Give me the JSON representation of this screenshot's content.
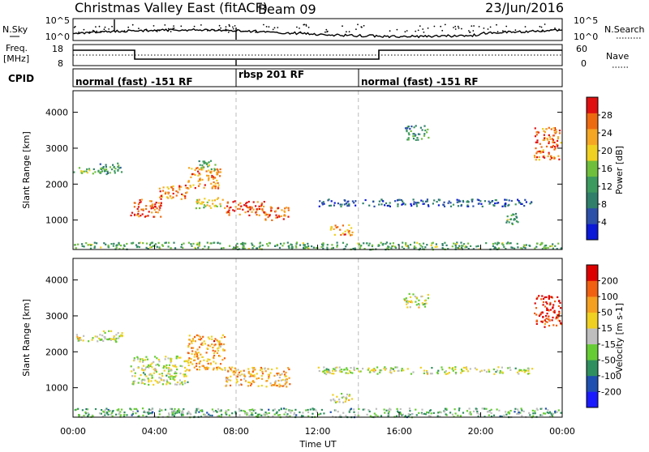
{
  "header": {
    "title": "Christmas Valley East (fitACF)",
    "beam": "Beam 09",
    "date": "23/Jun/2016"
  },
  "sidebar_labels": {
    "nsky": "N.Sky",
    "freq_line1": "Freq.",
    "freq_line2": "[MHz]",
    "cpid": "CPID",
    "nsearch": "N.Search",
    "nave": "Nave"
  },
  "nsky_panel": {
    "left_ticks": [
      "10^5",
      "10^0"
    ],
    "right_ticks": [
      "10^5",
      "10^0"
    ]
  },
  "freq_panel": {
    "left_ticks": [
      "18",
      "8"
    ],
    "right_ticks": [
      "60",
      "0"
    ]
  },
  "cpid_panel": {
    "segments": [
      {
        "label": "normal (fast) -151 RF",
        "start_h": 0,
        "end_h": 8
      },
      {
        "label": "rbsp 201 RF",
        "start_h": 8,
        "end_h": 14
      },
      {
        "label": "normal (fast) -151 RF",
        "start_h": 14,
        "end_h": 24
      }
    ]
  },
  "colors": {
    "power_scale": [
      "#0a18d8",
      "#2c4fa8",
      "#2f7f6a",
      "#3d9a5e",
      "#6fbf3c",
      "#f0d020",
      "#f5a623",
      "#ee6a10",
      "#e01010"
    ],
    "velocity_scale": [
      "#1a1aff",
      "#1f4fb0",
      "#2f8f5f",
      "#66cc33",
      "#bebebe",
      "#f0d020",
      "#f5a020",
      "#f06010",
      "#dd0000"
    ],
    "ground": "#bebebe"
  },
  "chart_data": [
    {
      "type": "heatmap",
      "name": "power",
      "ylabel": "Slant Range [km]",
      "colorbar_label": "Power [dB]",
      "colorbar_ticks": [
        "4",
        "8",
        "12",
        "16",
        "20",
        "24",
        "28"
      ],
      "y_ticks": [
        "1000",
        "2000",
        "3000",
        "4000"
      ],
      "ylim": [
        180,
        4600
      ],
      "xlim": [
        0,
        24
      ],
      "regions": [
        {
          "t0": 0.0,
          "t1": 1.6,
          "r0": 2300,
          "r1": 2500,
          "level": 0.45
        },
        {
          "t0": 1.2,
          "t1": 2.4,
          "r0": 2300,
          "r1": 2600,
          "level": 0.35
        },
        {
          "t0": 2.8,
          "t1": 4.3,
          "r0": 1100,
          "r1": 1600,
          "level": 0.85
        },
        {
          "t0": 4.2,
          "t1": 5.6,
          "r0": 1600,
          "r1": 2000,
          "level": 0.8
        },
        {
          "t0": 5.6,
          "t1": 7.2,
          "r0": 1900,
          "r1": 2500,
          "level": 0.75
        },
        {
          "t0": 6.1,
          "t1": 7.0,
          "r0": 2400,
          "r1": 2700,
          "level": 0.5
        },
        {
          "t0": 6.0,
          "t1": 7.4,
          "r0": 1350,
          "r1": 1650,
          "level": 0.6
        },
        {
          "t0": 7.4,
          "t1": 9.4,
          "r0": 1150,
          "r1": 1550,
          "level": 0.88
        },
        {
          "t0": 9.3,
          "t1": 10.6,
          "r0": 1000,
          "r1": 1400,
          "level": 0.85
        },
        {
          "t0": 12.6,
          "t1": 13.7,
          "r0": 600,
          "r1": 900,
          "level": 0.75
        },
        {
          "t0": 16.2,
          "t1": 17.4,
          "r0": 3250,
          "r1": 3650,
          "level": 0.35
        },
        {
          "t0": 12.0,
          "t1": 22.5,
          "r0": 1400,
          "r1": 1600,
          "level": 0.2
        },
        {
          "t0": 21.2,
          "t1": 21.8,
          "r0": 900,
          "r1": 1200,
          "level": 0.4
        },
        {
          "t0": 22.6,
          "t1": 23.9,
          "r0": 2700,
          "r1": 3600,
          "level": 0.8
        },
        {
          "t0": 0.0,
          "t1": 24.0,
          "r0": 200,
          "r1": 400,
          "level": 0.4
        }
      ]
    },
    {
      "type": "heatmap",
      "name": "velocity",
      "ylabel": "Slant Range [km]",
      "colorbar_label": "Velocity [m s-1]",
      "colorbar_ticks": [
        "-200",
        "-100",
        "-50",
        "-15",
        "15",
        "50",
        "100",
        "200"
      ],
      "y_ticks": [
        "1000",
        "2000",
        "3000",
        "4000"
      ],
      "ylim": [
        180,
        4600
      ],
      "xlim": [
        0,
        24
      ],
      "xlabel": "Time UT",
      "x_ticks": [
        "00:00",
        "04:00",
        "08:00",
        "12:00",
        "16:00",
        "20:00",
        "00:00"
      ],
      "regions": [
        {
          "t0": 0.0,
          "t1": 1.6,
          "r0": 2300,
          "r1": 2500,
          "level": 0.5
        },
        {
          "t0": 1.2,
          "t1": 2.4,
          "r0": 2300,
          "r1": 2600,
          "level": 0.5
        },
        {
          "t0": 2.8,
          "t1": 5.6,
          "r0": 1100,
          "r1": 1900,
          "level": 0.5
        },
        {
          "t0": 5.6,
          "t1": 7.4,
          "r0": 1500,
          "r1": 2500,
          "level": 0.72
        },
        {
          "t0": 7.4,
          "t1": 10.6,
          "r0": 1050,
          "r1": 1600,
          "level": 0.66
        },
        {
          "t0": 12.6,
          "t1": 13.7,
          "r0": 600,
          "r1": 900,
          "level": 0.5
        },
        {
          "t0": 16.2,
          "t1": 17.4,
          "r0": 3250,
          "r1": 3650,
          "level": 0.5
        },
        {
          "t0": 12.0,
          "t1": 22.5,
          "r0": 1400,
          "r1": 1600,
          "level": 0.5
        },
        {
          "t0": 22.6,
          "t1": 23.9,
          "r0": 2700,
          "r1": 3600,
          "level": 0.92
        },
        {
          "t0": 0.0,
          "t1": 24.0,
          "r0": 200,
          "r1": 450,
          "level": 0.38
        }
      ]
    }
  ]
}
